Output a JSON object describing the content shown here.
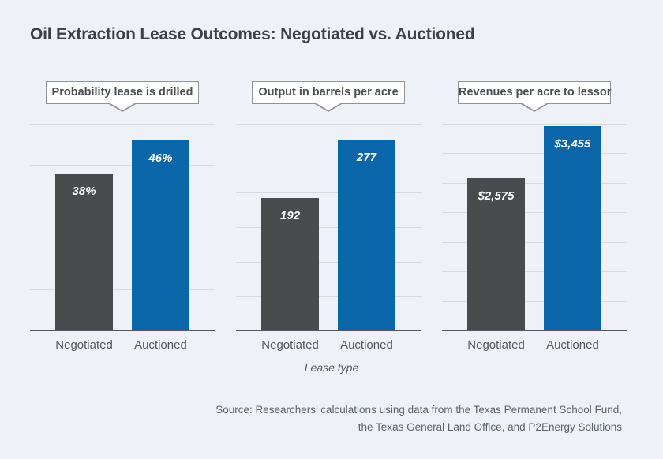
{
  "title": "Oil Extraction Lease Outcomes: Negotiated vs. Auctioned",
  "x_axis_title": "Lease type",
  "source": {
    "line1": "Source: Researchers’ calculations using data from the Texas Permanent School Fund,",
    "line2": "the Texas General Land Office, and P2Energy Solutions"
  },
  "colors": {
    "background": "#eef2f7",
    "bar_negotiated": "#4a4b4d",
    "bar_auctioned": "#0a66a9",
    "gridline": "#d5dade",
    "axis": "#53575d",
    "callout_border": "#90959a",
    "label_text": "#55595f",
    "value_text": "#ffffff"
  },
  "categories": [
    "Negotiated",
    "Auctioned"
  ],
  "chart_data": [
    {
      "type": "bar",
      "title": "Probability lease is drilled",
      "categories": [
        "Negotiated",
        "Auctioned"
      ],
      "values": [
        38,
        46
      ],
      "value_labels": [
        "38%",
        "46%"
      ],
      "ylim": [
        0,
        50
      ],
      "gridline_step": 10,
      "grid_intervals": 5,
      "legend": "none",
      "grid": true
    },
    {
      "type": "bar",
      "title": "Output in barrels per acre",
      "categories": [
        "Negotiated",
        "Auctioned"
      ],
      "values": [
        192,
        277
      ],
      "value_labels": [
        "192",
        "277"
      ],
      "ylim": [
        0,
        300
      ],
      "gridline_step": 50,
      "grid_intervals": 6,
      "legend": "none",
      "grid": true
    },
    {
      "type": "bar",
      "title": "Revenues per acre to lessor",
      "categories": [
        "Negotiated",
        "Auctioned"
      ],
      "values": [
        2575,
        3455
      ],
      "value_labels": [
        "$2,575",
        "$3,455"
      ],
      "ylim": [
        0,
        3500
      ],
      "gridline_step": 500,
      "grid_intervals": 7,
      "legend": "none",
      "grid": true
    }
  ]
}
